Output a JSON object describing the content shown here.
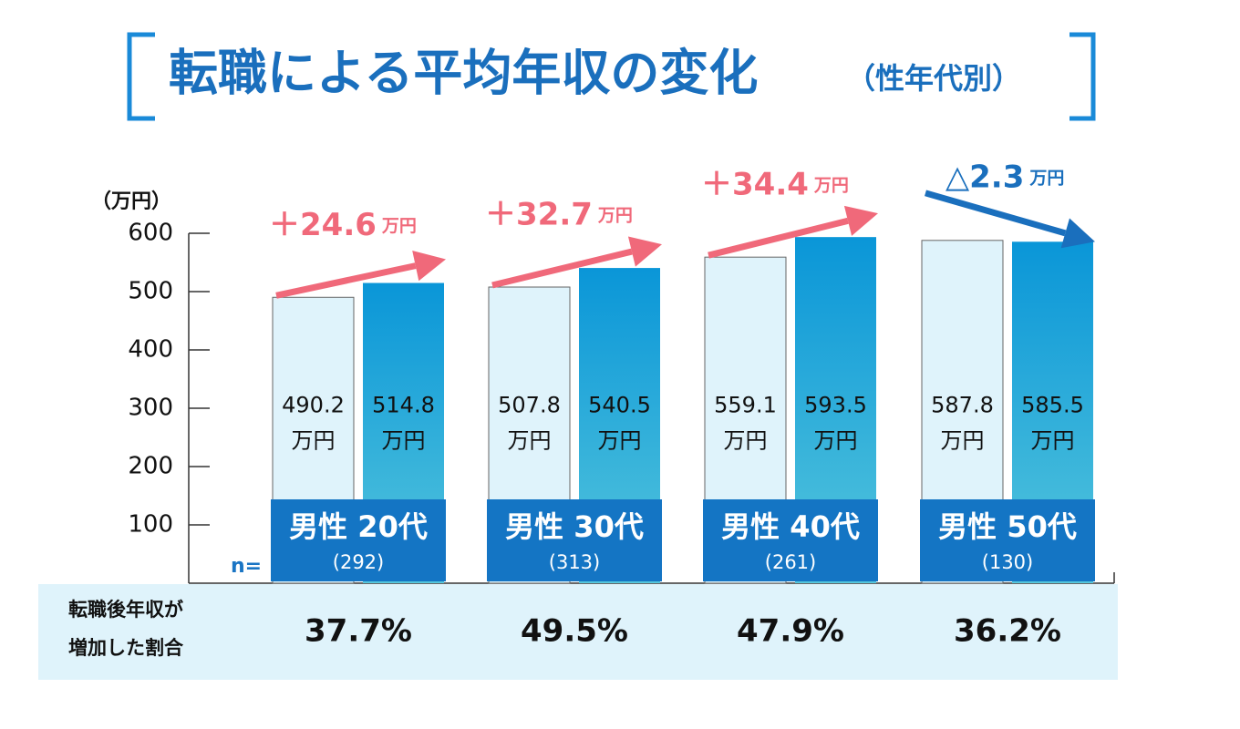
{
  "chart_data": {
    "type": "bar",
    "title": "転職による平均年収の変化",
    "subtitle": "（性年代別）",
    "y_label": "（万円）",
    "categories": [
      "男性 20代",
      "男性 30代",
      "男性 40代",
      "男性 50代"
    ],
    "n_label": "n=",
    "sample_sizes": [
      "(292)",
      "(313)",
      "(261)",
      "(130)"
    ],
    "series": [
      {
        "color": "#dff3fb",
        "values": [
          490.2,
          507.8,
          559.1,
          587.8
        ],
        "value_labels": [
          "490.2\n万円",
          "507.8\n万円",
          "559.1\n万円",
          "587.8\n万円"
        ]
      },
      {
        "color": "#0a96d8",
        "values": [
          514.8,
          540.5,
          593.5,
          585.5
        ],
        "value_labels": [
          "514.8\n万円",
          "540.5\n万円",
          "593.5\n万円",
          "585.5\n万円"
        ]
      }
    ],
    "annotations": [
      {
        "text": "＋24.6",
        "unit": "万円",
        "color": "#f0697a"
      },
      {
        "text": "＋32.7",
        "unit": "万円",
        "color": "#f0697a"
      },
      {
        "text": "＋34.4",
        "unit": "万円",
        "color": "#f0697a"
      },
      {
        "text": "△2.3",
        "unit": "万円",
        "color": "#1a6fbd"
      }
    ],
    "ylim": [
      0,
      600
    ],
    "yticks": [
      100,
      200,
      300,
      400,
      500,
      600
    ],
    "increase_share": {
      "label": "転職後年収が\n増加した割合",
      "values": [
        37.7,
        49.5,
        47.9,
        36.2
      ],
      "value_labels": [
        "37.7%",
        "49.5%",
        "47.9%",
        "36.2%"
      ]
    }
  }
}
